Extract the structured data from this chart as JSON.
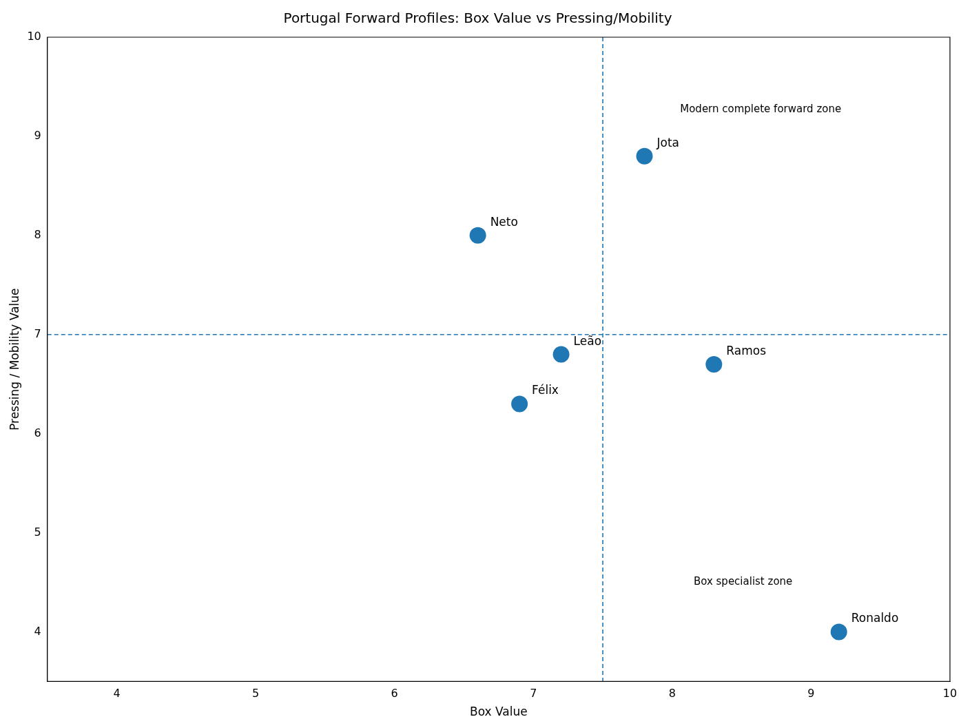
{
  "chart_data": {
    "type": "scatter",
    "title": "Portugal Forward Profiles: Box Value vs Pressing/Mobility",
    "xlabel": "Box Value",
    "ylabel": "Pressing / Mobility Value",
    "x": [
      6.6,
      7.8,
      7.2,
      6.9,
      8.3,
      9.2
    ],
    "series": [
      {
        "color": "#1f77b4",
        "values": [
          8.0,
          8.8,
          6.8,
          6.3,
          6.7,
          4.0
        ]
      }
    ],
    "xlim": [
      3.5,
      10
    ],
    "ylim": [
      3.5,
      10
    ],
    "xticks": [
      4,
      5,
      6,
      7,
      8,
      9,
      10
    ],
    "yticks": [
      4,
      5,
      6,
      7,
      8,
      9,
      10
    ],
    "grid": false,
    "legend": false,
    "marker": "circle",
    "ref_lines": [
      {
        "axis": "x",
        "value": 7.5,
        "color": "#1f77b4",
        "line_style": "dashed"
      },
      {
        "axis": "y",
        "value": 7,
        "color": "#1f77b4",
        "line_style": "dashed"
      }
    ],
    "annotations": [
      {
        "text": "Neto",
        "x": 6.6,
        "y": 8.0
      },
      {
        "text": "Jota",
        "x": 7.8,
        "y": 8.8
      },
      {
        "text": "Leão",
        "x": 7.2,
        "y": 6.8
      },
      {
        "text": "Félix",
        "x": 6.9,
        "y": 6.3
      },
      {
        "text": "Ramos",
        "x": 8.3,
        "y": 6.7
      },
      {
        "text": "Ronaldo",
        "x": 9.2,
        "y": 4.0
      },
      "Modern complete forward zone",
      "Box specialist zone"
    ]
  }
}
